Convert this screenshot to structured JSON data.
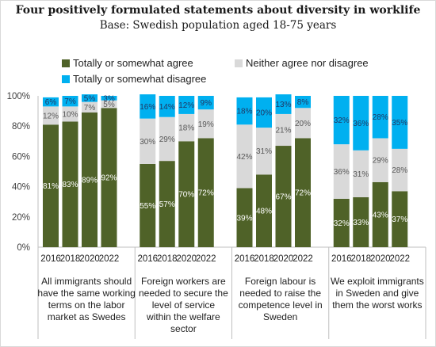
{
  "chart_data": {
    "type": "bar",
    "stacked": true,
    "percent": true,
    "title": "Four positively formulated statements about diversity in worklife",
    "subtitle": "Base: Swedish population aged 18-75 years",
    "y_ticks": [
      "0%",
      "20%",
      "40%",
      "60%",
      "80%",
      "100%"
    ],
    "ylim": [
      0,
      100
    ],
    "grid": false,
    "legend_position": "top",
    "colors": {
      "agree": "#4f6228",
      "neither": "#d9d9d9",
      "disagree": "#00b0f0"
    },
    "series": [
      {
        "key": "agree",
        "name": "Totally or somewhat agree"
      },
      {
        "key": "neither",
        "name": "Neither agree nor disagree"
      },
      {
        "key": "disagree",
        "name": "Totally or somewhat disagree"
      }
    ],
    "groups": [
      {
        "label": "All immigrants should have the same working terms on the labor market as Swedes",
        "years": [
          "2016",
          "2018",
          "2020",
          "2022"
        ],
        "agree": [
          81,
          83,
          89,
          92
        ],
        "neither": [
          12,
          10,
          7,
          5
        ],
        "disagree": [
          6,
          7,
          5,
          3
        ],
        "agree_labels": [
          "81%",
          "83%",
          "89%",
          "92%"
        ],
        "neither_labels": [
          "12%",
          "10%",
          "7%",
          "5%"
        ],
        "disagree_labels": [
          "6%",
          "7%",
          "5%",
          "3%"
        ]
      },
      {
        "label": "Foreign workers are needed to secure the level of service within the welfare sector",
        "years": [
          "2016",
          "2018",
          "2020",
          "2022"
        ],
        "agree": [
          55,
          57,
          70,
          72
        ],
        "neither": [
          30,
          29,
          18,
          19
        ],
        "disagree": [
          16,
          14,
          12,
          9
        ],
        "agree_labels": [
          "55%",
          "57%",
          "70%",
          "72%"
        ],
        "neither_labels": [
          "30%",
          "29%",
          "18%",
          "19%"
        ],
        "disagree_labels": [
          "16%",
          "14%",
          "12%",
          "9%"
        ]
      },
      {
        "label": "Foreign labour is needed to raise the competence level in Sweden",
        "years": [
          "2016",
          "2018",
          "2020",
          "2022"
        ],
        "agree": [
          39,
          48,
          67,
          72
        ],
        "neither": [
          42,
          31,
          21,
          20
        ],
        "disagree": [
          18,
          20,
          13,
          8
        ],
        "agree_labels": [
          "39%",
          "48%",
          "67%",
          "72%"
        ],
        "neither_labels": [
          "42%",
          "31%",
          "21%",
          "20%"
        ],
        "disagree_labels": [
          "18%",
          "20%",
          "13%",
          "8%"
        ]
      },
      {
        "label": "We exploit immigrants in Sweden and give them the worst works",
        "years": [
          "2016",
          "2018",
          "2020",
          "2022"
        ],
        "agree": [
          32,
          33,
          43,
          37
        ],
        "neither": [
          36,
          31,
          29,
          28
        ],
        "disagree": [
          32,
          36,
          28,
          35
        ],
        "agree_labels": [
          "32%",
          "33%",
          "43%",
          "37%"
        ],
        "neither_labels": [
          "36%",
          "31%",
          "29%",
          "28%"
        ],
        "disagree_labels": [
          "32%",
          "36%",
          "28%",
          "35%"
        ]
      }
    ]
  }
}
